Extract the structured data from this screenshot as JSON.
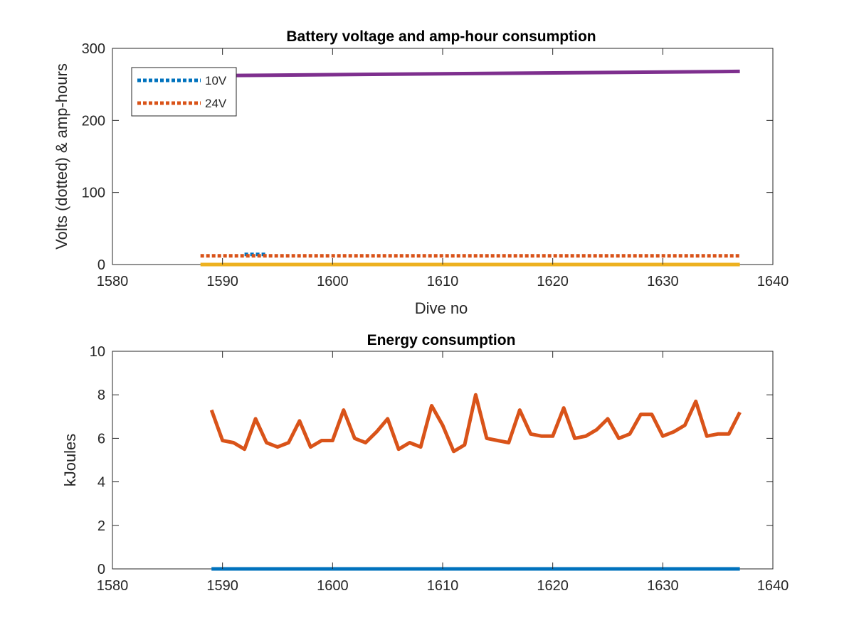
{
  "chart_data": [
    {
      "type": "line",
      "title": "Battery voltage and amp-hour consumption",
      "xlabel": "Dive no",
      "ylabel": "Volts (dotted) & amp-hours",
      "xlim": [
        1580,
        1640
      ],
      "ylim": [
        0,
        300
      ],
      "xticks": [
        "1580",
        "1590",
        "1600",
        "1610",
        "1620",
        "1630",
        "1640"
      ],
      "yticks": [
        "0",
        "100",
        "200",
        "300"
      ],
      "legend": {
        "location": "top-left"
      },
      "series": [
        {
          "name": "10V",
          "style": "dotted",
          "color": "#0072BD",
          "x": [
            1592,
            1594
          ],
          "y": [
            14,
            14
          ]
        },
        {
          "name": "24V",
          "style": "dotted",
          "color": "#D95319",
          "x": [
            1588,
            1637
          ],
          "y": [
            12,
            12
          ]
        },
        {
          "style": "solid",
          "color": "#EDB120",
          "x": [
            1588,
            1637
          ],
          "y": [
            0,
            0
          ]
        },
        {
          "style": "solid",
          "color": "#7E2F8E",
          "x": [
            1588,
            1637
          ],
          "y": [
            262,
            268
          ]
        }
      ]
    },
    {
      "type": "line",
      "title": "Energy consumption",
      "xlabel": "",
      "ylabel": "kJoules",
      "xlim": [
        1580,
        1640
      ],
      "ylim": [
        0,
        10
      ],
      "xticks": [
        "1580",
        "1590",
        "1600",
        "1610",
        "1620",
        "1630",
        "1640"
      ],
      "yticks": [
        "0",
        "2",
        "4",
        "6",
        "8",
        "10"
      ],
      "series": [
        {
          "style": "solid",
          "color": "#0072BD",
          "x": [
            1589,
            1637
          ],
          "y": [
            0,
            0
          ]
        },
        {
          "style": "solid",
          "color": "#D95319",
          "x": [
            1589,
            1590,
            1591,
            1592,
            1593,
            1594,
            1595,
            1596,
            1597,
            1598,
            1599,
            1600,
            1601,
            1602,
            1603,
            1604,
            1605,
            1606,
            1607,
            1608,
            1609,
            1610,
            1611,
            1612,
            1613,
            1614,
            1615,
            1616,
            1617,
            1618,
            1619,
            1620,
            1621,
            1622,
            1623,
            1624,
            1625,
            1626,
            1627,
            1628,
            1629,
            1630,
            1631,
            1632,
            1633,
            1634,
            1635,
            1636,
            1637
          ],
          "y": [
            7.3,
            5.9,
            5.8,
            5.5,
            6.9,
            5.8,
            5.6,
            5.8,
            6.8,
            5.6,
            5.9,
            5.9,
            7.3,
            6.0,
            5.8,
            6.3,
            6.9,
            5.5,
            5.8,
            5.6,
            7.5,
            6.6,
            5.4,
            5.7,
            8.0,
            6.0,
            5.9,
            5.8,
            7.3,
            6.2,
            6.1,
            6.1,
            7.4,
            6.0,
            6.1,
            6.4,
            6.9,
            6.0,
            6.2,
            7.1,
            7.1,
            6.1,
            6.3,
            6.6,
            7.7,
            6.1,
            6.2,
            6.2,
            7.2
          ]
        }
      ]
    }
  ]
}
